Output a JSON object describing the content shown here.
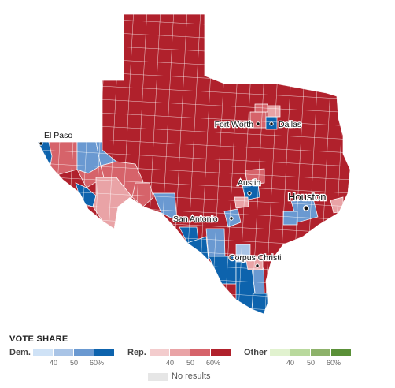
{
  "map": {
    "colors": {
      "rep_strong": "#b0212c",
      "rep_mid": "#d6636a",
      "rep_light": "#e9a3a6",
      "rep_faint": "#f3cccd",
      "dem_strong": "#0d63ad",
      "dem_mid": "#6a99d1",
      "dem_light": "#a9c4e6",
      "border": "#ffffff"
    },
    "cities": [
      {
        "name": "El Paso",
        "size": "small"
      },
      {
        "name": "Fort Worth",
        "size": "small"
      },
      {
        "name": "Dallas",
        "size": "small"
      },
      {
        "name": "Austin",
        "size": "small"
      },
      {
        "name": "Houston",
        "size": "large"
      },
      {
        "name": "San Antonio",
        "size": "small"
      },
      {
        "name": "Corpus Christi",
        "size": "small"
      }
    ]
  },
  "legend": {
    "title": "VOTE SHARE",
    "groups": [
      {
        "name": "Dem.",
        "colors": [
          "#cfe2f6",
          "#a9c4e6",
          "#6a99d1",
          "#0d63ad"
        ],
        "ticks": [
          "40",
          "50",
          "60%"
        ]
      },
      {
        "name": "Rep.",
        "colors": [
          "#f3cccd",
          "#e9a3a6",
          "#d6636a",
          "#b0212c"
        ],
        "ticks": [
          "40",
          "50",
          "60%"
        ]
      },
      {
        "name": "Other",
        "colors": [
          "#e1f2cf",
          "#b9d99d",
          "#8db26a",
          "#5a9038"
        ],
        "ticks": [
          "40",
          "50",
          "60%"
        ]
      }
    ],
    "no_results": {
      "label": "No results",
      "color": "#e6e6e6"
    }
  }
}
